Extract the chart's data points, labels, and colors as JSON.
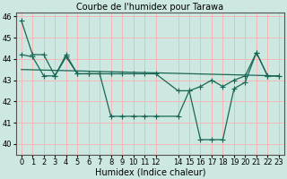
{
  "title": "Courbe de l'humidex pour Tarawa",
  "xlabel": "Humidex (Indice chaleur)",
  "xlim": [
    -0.5,
    23.5
  ],
  "ylim": [
    39.5,
    46.2
  ],
  "yticks": [
    40,
    41,
    42,
    43,
    44,
    45,
    46
  ],
  "xticks": [
    0,
    1,
    2,
    3,
    4,
    5,
    6,
    7,
    8,
    9,
    10,
    11,
    12,
    14,
    15,
    16,
    17,
    18,
    19,
    20,
    21,
    22,
    23
  ],
  "xtick_labels": [
    "0",
    "1",
    "2",
    "3",
    "4",
    "5",
    "6",
    "7",
    "8",
    "9",
    "10",
    "11",
    "12",
    "14",
    "15",
    "16",
    "17",
    "18",
    "19",
    "20",
    "21",
    "22",
    "23"
  ],
  "background_color": "#cce8e0",
  "grid_color": "#f5b8b8",
  "line_color": "#1a6655",
  "line1_x": [
    0,
    1,
    2,
    3,
    4,
    5,
    6,
    7,
    8,
    9,
    10,
    11,
    12,
    14,
    15,
    16,
    17,
    18,
    19,
    20,
    21,
    22,
    23
  ],
  "line1_y": [
    45.8,
    44.2,
    44.2,
    43.2,
    44.2,
    43.3,
    43.3,
    43.3,
    41.3,
    41.3,
    41.3,
    41.3,
    41.3,
    41.3,
    42.5,
    40.2,
    40.2,
    40.2,
    42.6,
    42.9,
    44.3,
    43.2,
    43.2
  ],
  "line2_x": [
    0,
    23
  ],
  "line2_y": [
    43.5,
    43.2
  ],
  "line3_x": [
    0,
    1,
    2,
    3,
    4,
    5,
    6,
    7,
    8,
    9,
    10,
    11,
    12,
    14,
    15,
    16,
    17,
    18,
    19,
    20,
    21,
    22,
    23
  ],
  "line3_y": [
    44.2,
    44.1,
    43.2,
    43.2,
    44.1,
    43.3,
    43.3,
    43.3,
    43.3,
    43.3,
    43.3,
    43.3,
    43.3,
    42.5,
    42.5,
    42.7,
    43.0,
    42.7,
    43.0,
    43.2,
    44.3,
    43.2,
    43.2
  ],
  "marker": "+",
  "markersize": 4,
  "linewidth": 0.9,
  "title_fontsize": 7,
  "tick_fontsize": 6,
  "xlabel_fontsize": 7
}
